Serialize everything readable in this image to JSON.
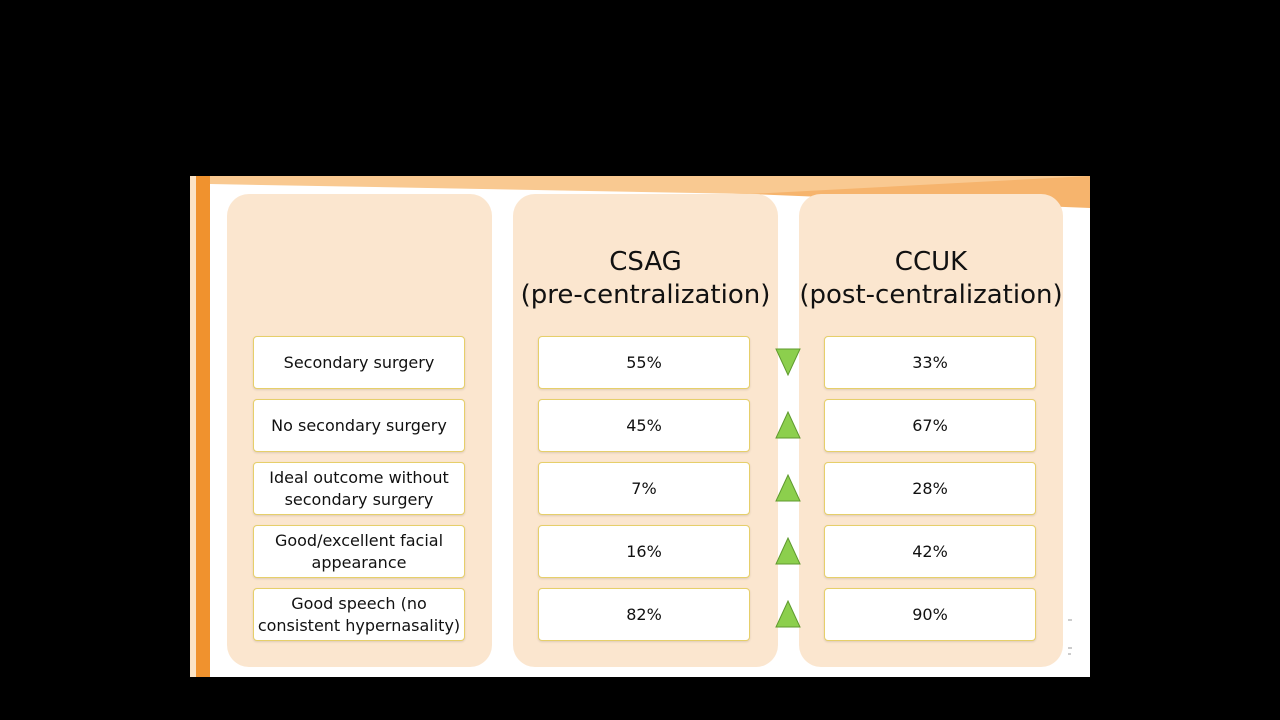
{
  "table": {
    "headers": [
      "",
      "CSAG\n(pre-centralization)",
      "CCUK\n(post-centralization)"
    ],
    "rows": [
      {
        "label": "Secondary surgery",
        "csag": "55%",
        "ccuk": "33%",
        "trend": "down"
      },
      {
        "label": "No secondary surgery",
        "csag": "45%",
        "ccuk": "67%",
        "trend": "up"
      },
      {
        "label": "Ideal outcome without secondary surgery",
        "csag": "7%",
        "ccuk": "28%",
        "trend": "up"
      },
      {
        "label": "Good/excellent facial appearance",
        "csag": "16%",
        "ccuk": "42%",
        "trend": "up"
      },
      {
        "label": "Good speech (no consistent hypernasality)",
        "csag": "82%",
        "ccuk": "90%",
        "trend": "up"
      }
    ]
  },
  "colors": {
    "accent_orange": "#f0922e",
    "panel_peach": "#fbe6cf",
    "arrow_green": "#8ccf4d",
    "cell_border": "#e6cf6a"
  }
}
